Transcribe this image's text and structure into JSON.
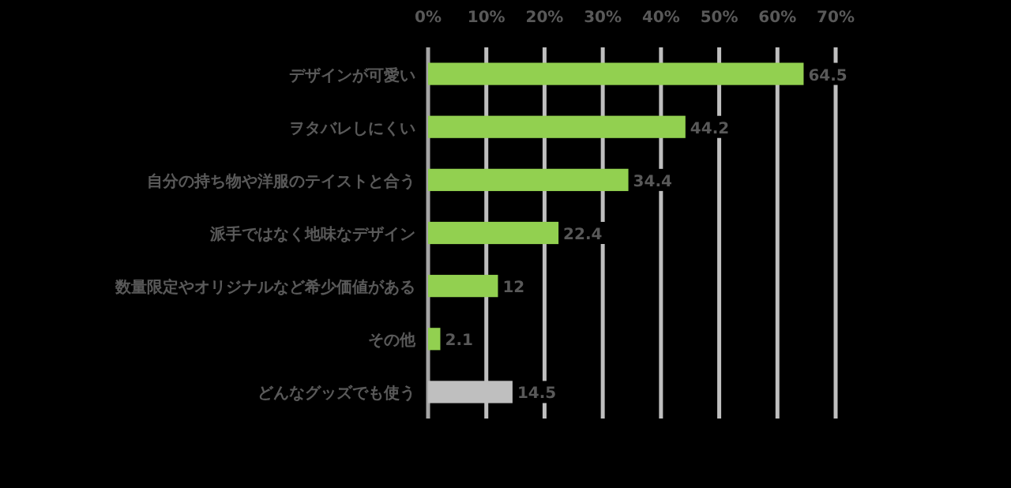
{
  "chart_data": {
    "type": "bar",
    "orientation": "horizontal",
    "categories": [
      "デザインが可愛い",
      "ヲタバレしにくい",
      "自分の持ち物や洋服のテイストと合う",
      "派手ではなく地味なデザイン",
      "数量限定やオリジナルなど希少価値がある",
      "その他",
      "どんなグッズでも使う"
    ],
    "values": [
      64.5,
      44.2,
      34.4,
      22.4,
      12,
      2.1,
      14.5
    ],
    "colors": [
      "#92d050",
      "#92d050",
      "#92d050",
      "#92d050",
      "#92d050",
      "#92d050",
      "#bfbfbf"
    ],
    "value_labels": [
      "64.5",
      "44.2",
      "34.4",
      "22.4",
      "12",
      "2.1",
      "14.5"
    ],
    "xlim": [
      0,
      70
    ],
    "xticks": [
      {
        "value": 0,
        "label": "0%"
      },
      {
        "value": 10,
        "label": "10%"
      },
      {
        "value": 20,
        "label": "20%"
      },
      {
        "value": 30,
        "label": "30%"
      },
      {
        "value": 40,
        "label": "40%"
      },
      {
        "value": 50,
        "label": "50%"
      },
      {
        "value": 60,
        "label": "60%"
      },
      {
        "value": 70,
        "label": "70%"
      }
    ],
    "grid": "x"
  }
}
